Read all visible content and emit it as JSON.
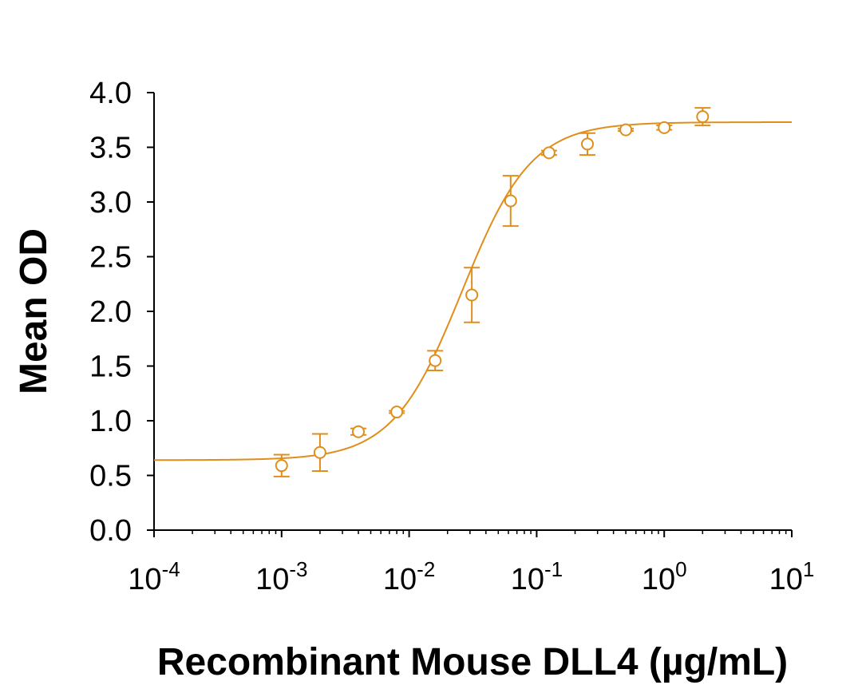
{
  "chart_data": {
    "type": "scatter",
    "xlabel": "Recombinant Mouse DLL4 (µg/mL)",
    "ylabel": "Mean OD",
    "x_scale": "log",
    "xlim": [
      0.0001,
      10
    ],
    "ylim": [
      0,
      4
    ],
    "x_ticks": [
      {
        "base": "10",
        "exp": "-4"
      },
      {
        "base": "10",
        "exp": "-3"
      },
      {
        "base": "10",
        "exp": "-2"
      },
      {
        "base": "10",
        "exp": "-1"
      },
      {
        "base": "10",
        "exp": "0"
      },
      {
        "base": "10",
        "exp": "1"
      }
    ],
    "y_ticks": [
      "0.0",
      "0.5",
      "1.0",
      "1.5",
      "2.0",
      "2.5",
      "3.0",
      "3.5",
      "4.0"
    ],
    "grid": false,
    "legend": "none",
    "color": "#e08e1b",
    "series": [
      {
        "x": [
          0.001,
          0.002,
          0.004,
          0.008,
          0.016,
          0.031,
          0.0625,
          0.125,
          0.25,
          0.5,
          1,
          2
        ],
        "y": [
          0.59,
          0.71,
          0.9,
          1.08,
          1.55,
          2.15,
          3.01,
          3.45,
          3.53,
          3.66,
          3.68,
          3.78
        ],
        "error": [
          0.1,
          0.17,
          0.03,
          0.01,
          0.09,
          0.25,
          0.23,
          0.02,
          0.1,
          0.01,
          0.02,
          0.08
        ]
      }
    ],
    "fit": {
      "model": "4PL",
      "bottom": 0.64,
      "top": 3.73,
      "ec50": 0.026,
      "hill": 1.6
    }
  }
}
